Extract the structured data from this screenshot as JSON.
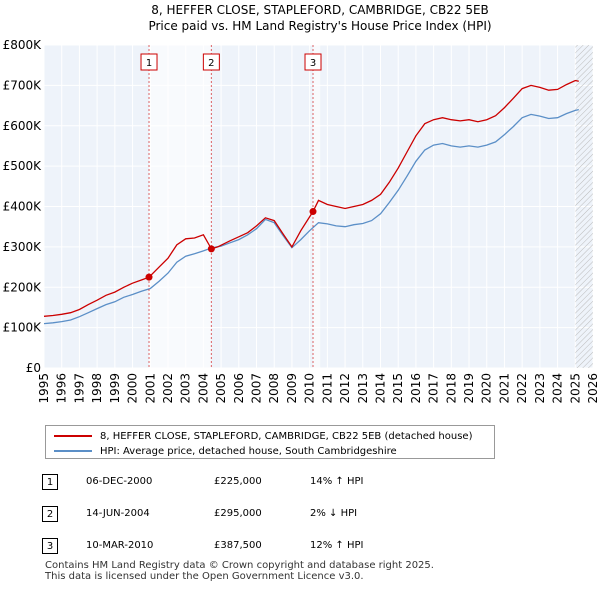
{
  "chart_data": {
    "type": "line",
    "title": "8, HEFFER CLOSE, STAPLEFORD, CAMBRIDGE, CB22 5EB",
    "subtitle": "Price paid vs. HM Land Registry's House Price Index (HPI)",
    "xlim": [
      1995,
      2026
    ],
    "ylim": [
      0,
      800000
    ],
    "x_ticks": [
      "1995",
      "1996",
      "1997",
      "1998",
      "1999",
      "2000",
      "2001",
      "2002",
      "2003",
      "2004",
      "2005",
      "2006",
      "2007",
      "2008",
      "2009",
      "2010",
      "2011",
      "2012",
      "2013",
      "2014",
      "2015",
      "2016",
      "2017",
      "2018",
      "2019",
      "2020",
      "2021",
      "2022",
      "2023",
      "2024",
      "2025",
      "2026"
    ],
    "y_ticks": [
      {
        "label": "£0",
        "value": 0
      },
      {
        "label": "£100K",
        "value": 100000
      },
      {
        "label": "£200K",
        "value": 200000
      },
      {
        "label": "£300K",
        "value": 300000
      },
      {
        "label": "£400K",
        "value": 400000
      },
      {
        "label": "£500K",
        "value": 500000
      },
      {
        "label": "£600K",
        "value": 600000
      },
      {
        "label": "£700K",
        "value": 700000
      },
      {
        "label": "£800K",
        "value": 800000
      }
    ],
    "shaded_periods": [
      [
        2000.93,
        2004.45
      ],
      [
        2010.19,
        2010.6
      ]
    ],
    "forecast_start": 2025.0,
    "series": [
      {
        "name": "8, HEFFER CLOSE, STAPLEFORD, CAMBRIDGE, CB22 5EB (detached house)",
        "color": "#cc0000",
        "x": [
          1995,
          1995.5,
          1996,
          1996.5,
          1997,
          1997.5,
          1998,
          1998.5,
          1999,
          1999.5,
          2000,
          2000.5,
          2000.93,
          2001.5,
          2002,
          2002.5,
          2003,
          2003.5,
          2004,
          2004.45,
          2004.8,
          2005.5,
          2006,
          2006.5,
          2007,
          2007.5,
          2008,
          2008.5,
          2009,
          2009.5,
          2010.19,
          2010.5,
          2011,
          2011.5,
          2012,
          2012.5,
          2013,
          2013.5,
          2014,
          2014.5,
          2015,
          2015.5,
          2016,
          2016.5,
          2017,
          2017.5,
          2018,
          2018.5,
          2019,
          2019.5,
          2020,
          2020.5,
          2021,
          2021.5,
          2022,
          2022.5,
          2023,
          2023.5,
          2024,
          2024.5,
          2025,
          2025.2
        ],
        "y": [
          128000,
          130000,
          133000,
          137000,
          145000,
          157000,
          168000,
          180000,
          188000,
          200000,
          210000,
          218000,
          225000,
          250000,
          272000,
          305000,
          320000,
          322000,
          330000,
          295000,
          300000,
          315000,
          325000,
          335000,
          352000,
          372000,
          365000,
          332000,
          300000,
          340000,
          387500,
          415000,
          405000,
          400000,
          395000,
          400000,
          405000,
          415000,
          430000,
          460000,
          495000,
          535000,
          575000,
          605000,
          615000,
          620000,
          615000,
          612000,
          615000,
          610000,
          615000,
          625000,
          645000,
          668000,
          692000,
          700000,
          695000,
          688000,
          690000,
          702000,
          712000,
          710000
        ]
      },
      {
        "name": "HPI: Average price, detached house, South Cambridgeshire",
        "color": "#5b8fc7",
        "x": [
          1995,
          1995.5,
          1996,
          1996.5,
          1997,
          1997.5,
          1998,
          1998.5,
          1999,
          1999.5,
          2000,
          2000.5,
          2001,
          2001.5,
          2002,
          2002.5,
          2003,
          2003.5,
          2004,
          2004.5,
          2005,
          2005.5,
          2006,
          2006.5,
          2007,
          2007.5,
          2008,
          2008.5,
          2009,
          2009.5,
          2010,
          2010.5,
          2011,
          2011.5,
          2012,
          2012.5,
          2013,
          2013.5,
          2014,
          2014.5,
          2015,
          2015.5,
          2016,
          2016.5,
          2017,
          2017.5,
          2018,
          2018.5,
          2019,
          2019.5,
          2020,
          2020.5,
          2021,
          2021.5,
          2022,
          2022.5,
          2023,
          2023.5,
          2024,
          2024.5,
          2025,
          2025.2
        ],
        "y": [
          110000,
          112000,
          115000,
          119000,
          127000,
          137000,
          147000,
          157000,
          164000,
          175000,
          182000,
          190000,
          197000,
          215000,
          235000,
          262000,
          277000,
          283000,
          290000,
          298000,
          302000,
          310000,
          318000,
          330000,
          345000,
          368000,
          360000,
          328000,
          298000,
          318000,
          340000,
          360000,
          357000,
          352000,
          350000,
          355000,
          358000,
          365000,
          382000,
          410000,
          440000,
          475000,
          512000,
          540000,
          552000,
          556000,
          550000,
          547000,
          550000,
          547000,
          552000,
          560000,
          578000,
          598000,
          620000,
          628000,
          624000,
          618000,
          620000,
          630000,
          638000,
          640000
        ]
      }
    ],
    "sales": [
      {
        "label": "1",
        "x": 2000.93,
        "y": 225000,
        "date": "06-DEC-2000",
        "price": "£225,000",
        "hpi": "14% ↑ HPI"
      },
      {
        "label": "2",
        "x": 2004.45,
        "y": 295000,
        "date": "14-JUN-2004",
        "price": "£295,000",
        "hpi": "2% ↓ HPI"
      },
      {
        "label": "3",
        "x": 2010.19,
        "y": 387500,
        "date": "10-MAR-2010",
        "price": "£387,500",
        "hpi": "12% ↑ HPI"
      }
    ]
  },
  "legend": {
    "property_label": "8, HEFFER CLOSE, STAPLEFORD, CAMBRIDGE, CB22 5EB (detached house)",
    "hpi_label": "HPI: Average price, detached house, South Cambridgeshire",
    "property_color": "#cc0000",
    "hpi_color": "#5b8fc7"
  },
  "footer": {
    "line1": "Contains HM Land Registry data © Crown copyright and database right 2025.",
    "line2": "This data is licensed under the Open Government Licence v3.0."
  }
}
